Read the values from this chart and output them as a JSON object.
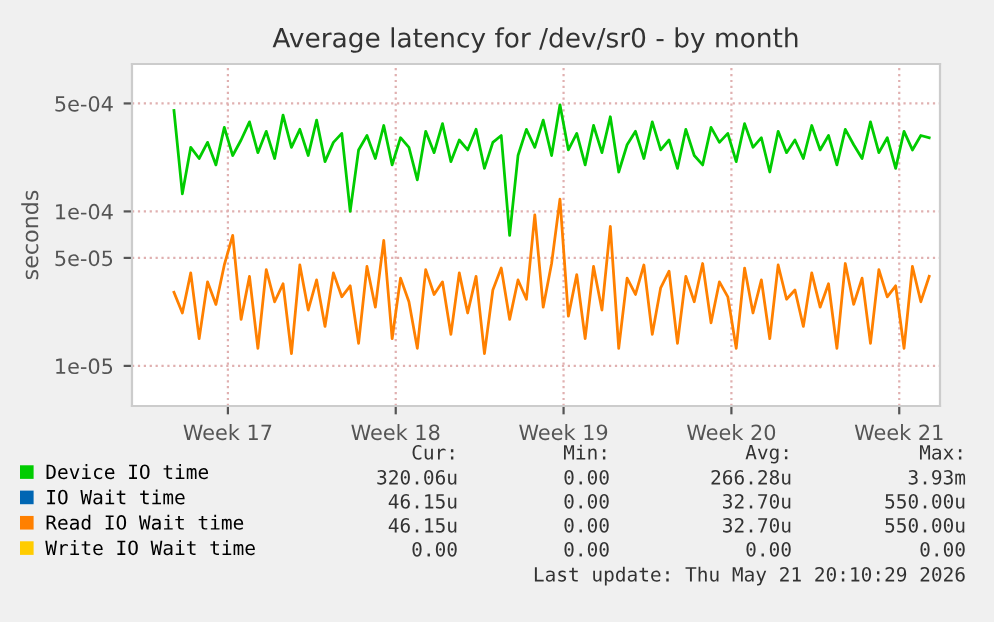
{
  "chart_data": {
    "type": "line",
    "title": "Average latency for /dev/sr0 - by month",
    "ylabel": "seconds",
    "log": "y",
    "grid": true,
    "legend": "bottom",
    "line_style": "solid",
    "marker": "none",
    "xlim": [
      "2026-04-16T00:00",
      "2026-05-19T16:48"
    ],
    "xticks": [
      {
        "value": "2026-04-20",
        "label": "Week 17"
      },
      {
        "value": "2026-04-27",
        "label": "Week 18"
      },
      {
        "value": "2026-05-04",
        "label": "Week 19"
      },
      {
        "value": "2026-05-11",
        "label": "Week 20"
      },
      {
        "value": "2026-05-18",
        "label": "Week 21"
      }
    ],
    "ylim": [
      5.5e-06,
      0.0009
    ],
    "yticks": [
      {
        "value": 1e-05,
        "label": "1e-05"
      },
      {
        "value": 5e-05,
        "label": "5e-05"
      },
      {
        "value": 0.0001,
        "label": "1e-04"
      },
      {
        "value": 0.0005,
        "label": "5e-04"
      }
    ],
    "x": [
      "2026-04-17T18:00",
      "2026-04-18T02:24",
      "2026-04-18T10:48",
      "2026-04-18T19:12",
      "2026-04-19T03:36",
      "2026-04-19T12:00",
      "2026-04-19T20:24",
      "2026-04-20T04:48",
      "2026-04-20T13:12",
      "2026-04-20T21:36",
      "2026-04-21T06:00",
      "2026-04-21T14:24",
      "2026-04-21T22:48",
      "2026-04-22T07:12",
      "2026-04-22T15:36",
      "2026-04-23T00:00",
      "2026-04-23T08:24",
      "2026-04-23T16:48",
      "2026-04-24T01:12",
      "2026-04-24T09:36",
      "2026-04-24T18:00",
      "2026-04-25T02:24",
      "2026-04-25T10:48",
      "2026-04-25T19:12",
      "2026-04-26T03:36",
      "2026-04-26T12:00",
      "2026-04-26T20:24",
      "2026-04-27T04:48",
      "2026-04-27T13:12",
      "2026-04-27T21:36",
      "2026-04-28T06:00",
      "2026-04-28T14:24",
      "2026-04-28T22:48",
      "2026-04-29T07:12",
      "2026-04-29T15:36",
      "2026-04-30T00:00",
      "2026-04-30T08:24",
      "2026-04-30T16:48",
      "2026-05-01T01:12",
      "2026-05-01T09:36",
      "2026-05-01T18:00",
      "2026-05-02T02:24",
      "2026-05-02T10:48",
      "2026-05-02T19:12",
      "2026-05-03T03:36",
      "2026-05-03T12:00",
      "2026-05-03T20:24",
      "2026-05-04T04:48",
      "2026-05-04T13:12",
      "2026-05-04T21:36",
      "2026-05-05T06:00",
      "2026-05-05T14:24",
      "2026-05-05T22:48",
      "2026-05-06T07:12",
      "2026-05-06T15:36",
      "2026-05-07T00:00",
      "2026-05-07T08:24",
      "2026-05-07T16:48",
      "2026-05-08T01:12",
      "2026-05-08T09:36",
      "2026-05-08T18:00",
      "2026-05-09T02:24",
      "2026-05-09T10:48",
      "2026-05-09T19:12",
      "2026-05-10T03:36",
      "2026-05-10T12:00",
      "2026-05-10T20:24",
      "2026-05-11T04:48",
      "2026-05-11T13:12",
      "2026-05-11T21:36",
      "2026-05-12T06:00",
      "2026-05-12T14:24",
      "2026-05-12T22:48",
      "2026-05-13T07:12",
      "2026-05-13T15:36",
      "2026-05-14T00:00",
      "2026-05-14T08:24",
      "2026-05-14T16:48",
      "2026-05-15T01:12",
      "2026-05-15T09:36",
      "2026-05-15T18:00",
      "2026-05-16T02:24",
      "2026-05-16T10:48",
      "2026-05-16T19:12",
      "2026-05-17T03:36",
      "2026-05-17T12:00",
      "2026-05-17T20:24",
      "2026-05-18T04:48",
      "2026-05-18T13:12",
      "2026-05-18T21:36",
      "2026-05-19T06:00"
    ],
    "series": [
      {
        "name": "Device IO time",
        "color": "#00cc00",
        "values": [
          0.00045,
          0.00013,
          0.00026,
          0.00022,
          0.00028,
          0.0002,
          0.00035,
          0.00023,
          0.00029,
          0.00038,
          0.00024,
          0.00033,
          0.00022,
          0.00042,
          0.00026,
          0.00034,
          0.00023,
          0.00039,
          0.00021,
          0.00028,
          0.00032,
          0.0001,
          0.00025,
          0.00031,
          0.00022,
          0.00036,
          0.0002,
          0.0003,
          0.00026,
          0.00016,
          0.00033,
          0.00024,
          0.00037,
          0.00021,
          0.00029,
          0.00025,
          0.00034,
          0.00019,
          0.00028,
          0.00031,
          7e-05,
          0.00023,
          0.00034,
          0.00026,
          0.00039,
          0.00023,
          0.00049,
          0.00025,
          0.00032,
          0.0002,
          0.00036,
          0.00024,
          0.00041,
          0.00018,
          0.00027,
          0.00033,
          0.00022,
          0.00038,
          0.00025,
          0.00029,
          0.00019,
          0.00034,
          0.00023,
          0.0002,
          0.00035,
          0.00028,
          0.00032,
          0.00021,
          0.00037,
          0.00026,
          0.0003,
          0.00018,
          0.00033,
          0.00024,
          0.00029,
          0.00022,
          0.00036,
          0.00025,
          0.00031,
          0.0002,
          0.00034,
          0.00027,
          0.00022,
          0.00038,
          0.00024,
          0.0003,
          0.00019,
          0.00033,
          0.00025,
          0.00031,
          0.0003
        ]
      },
      {
        "name": "IO Wait time",
        "color": "#0066b3",
        "values": [
          null,
          null,
          null,
          null,
          null,
          null,
          null,
          null,
          null,
          null,
          null,
          null,
          null,
          null,
          null,
          null,
          null,
          null,
          null,
          null,
          null,
          null,
          null,
          null,
          null,
          null,
          null,
          null,
          null,
          null,
          null,
          null,
          null,
          null,
          null,
          null,
          null,
          null,
          null,
          null,
          null,
          null,
          null,
          null,
          null,
          null,
          null,
          null,
          null,
          null,
          null,
          null,
          null,
          null,
          null,
          null,
          null,
          null,
          null,
          null,
          null,
          null,
          null,
          null,
          null,
          null,
          null,
          null,
          null,
          null,
          null,
          null,
          null,
          null,
          null,
          null,
          null,
          null,
          null,
          null,
          null,
          null,
          null,
          null,
          null,
          null,
          null,
          null,
          null,
          null,
          null
        ]
      },
      {
        "name": "Read IO Wait time",
        "color": "#ff8000",
        "values": [
          3e-05,
          2.2e-05,
          4e-05,
          1.5e-05,
          3.5e-05,
          2.5e-05,
          4.5e-05,
          7e-05,
          2e-05,
          3.8e-05,
          1.3e-05,
          4.2e-05,
          2.6e-05,
          3.4e-05,
          1.2e-05,
          4.5e-05,
          2.3e-05,
          3.6e-05,
          1.8e-05,
          4e-05,
          2.8e-05,
          3.3e-05,
          1.4e-05,
          4.4e-05,
          2.4e-05,
          6.5e-05,
          1.5e-05,
          3.7e-05,
          2.6e-05,
          1.3e-05,
          4.2e-05,
          2.9e-05,
          3.5e-05,
          1.6e-05,
          4e-05,
          2.2e-05,
          3.8e-05,
          1.2e-05,
          3.1e-05,
          4.3e-05,
          2e-05,
          3.6e-05,
          2.7e-05,
          9.5e-05,
          2.4e-05,
          4.6e-05,
          0.00012,
          2.1e-05,
          3.9e-05,
          1.5e-05,
          4.4e-05,
          2.3e-05,
          8e-05,
          1.3e-05,
          3.7e-05,
          2.9e-05,
          4.5e-05,
          1.6e-05,
          3.2e-05,
          4.1e-05,
          1.4e-05,
          3.8e-05,
          2.6e-05,
          4.6e-05,
          1.9e-05,
          3.5e-05,
          2.8e-05,
          1.3e-05,
          4.3e-05,
          2.2e-05,
          3.6e-05,
          1.5e-05,
          4.5e-05,
          2.7e-05,
          3.1e-05,
          1.8e-05,
          4e-05,
          2.4e-05,
          3.4e-05,
          1.3e-05,
          4.6e-05,
          2.5e-05,
          3.7e-05,
          1.4e-05,
          4.2e-05,
          2.8e-05,
          3.3e-05,
          1.3e-05,
          4.4e-05,
          2.6e-05,
          3.8e-05
        ]
      },
      {
        "name": "Write IO Wait time",
        "color": "#ffcc00",
        "values": [
          null,
          null,
          null,
          null,
          null,
          null,
          null,
          null,
          null,
          null,
          null,
          null,
          null,
          null,
          null,
          null,
          null,
          null,
          null,
          null,
          null,
          null,
          null,
          null,
          null,
          null,
          null,
          null,
          null,
          null,
          null,
          null,
          null,
          null,
          null,
          null,
          null,
          null,
          null,
          null,
          null,
          null,
          null,
          null,
          null,
          null,
          null,
          null,
          null,
          null,
          null,
          null,
          null,
          null,
          null,
          null,
          null,
          null,
          null,
          null,
          null,
          null,
          null,
          null,
          null,
          null,
          null,
          null,
          null,
          null,
          null,
          null,
          null,
          null,
          null,
          null,
          null,
          null,
          null,
          null,
          null,
          null,
          null,
          null,
          null,
          null,
          null,
          null,
          null,
          null,
          null
        ]
      }
    ],
    "annotations": [
      "Cur:",
      "Min:",
      "Avg:",
      "Max:",
      "320.06u",
      "0.00",
      "266.28u",
      "3.93m",
      "46.15u",
      "0.00",
      "32.70u",
      "550.00u",
      "46.15u",
      "0.00",
      "32.70u",
      "550.00u",
      "0.00",
      "0.00",
      "0.00",
      "0.00",
      "Last update: Thu May 21 20:10:29 2026"
    ]
  }
}
